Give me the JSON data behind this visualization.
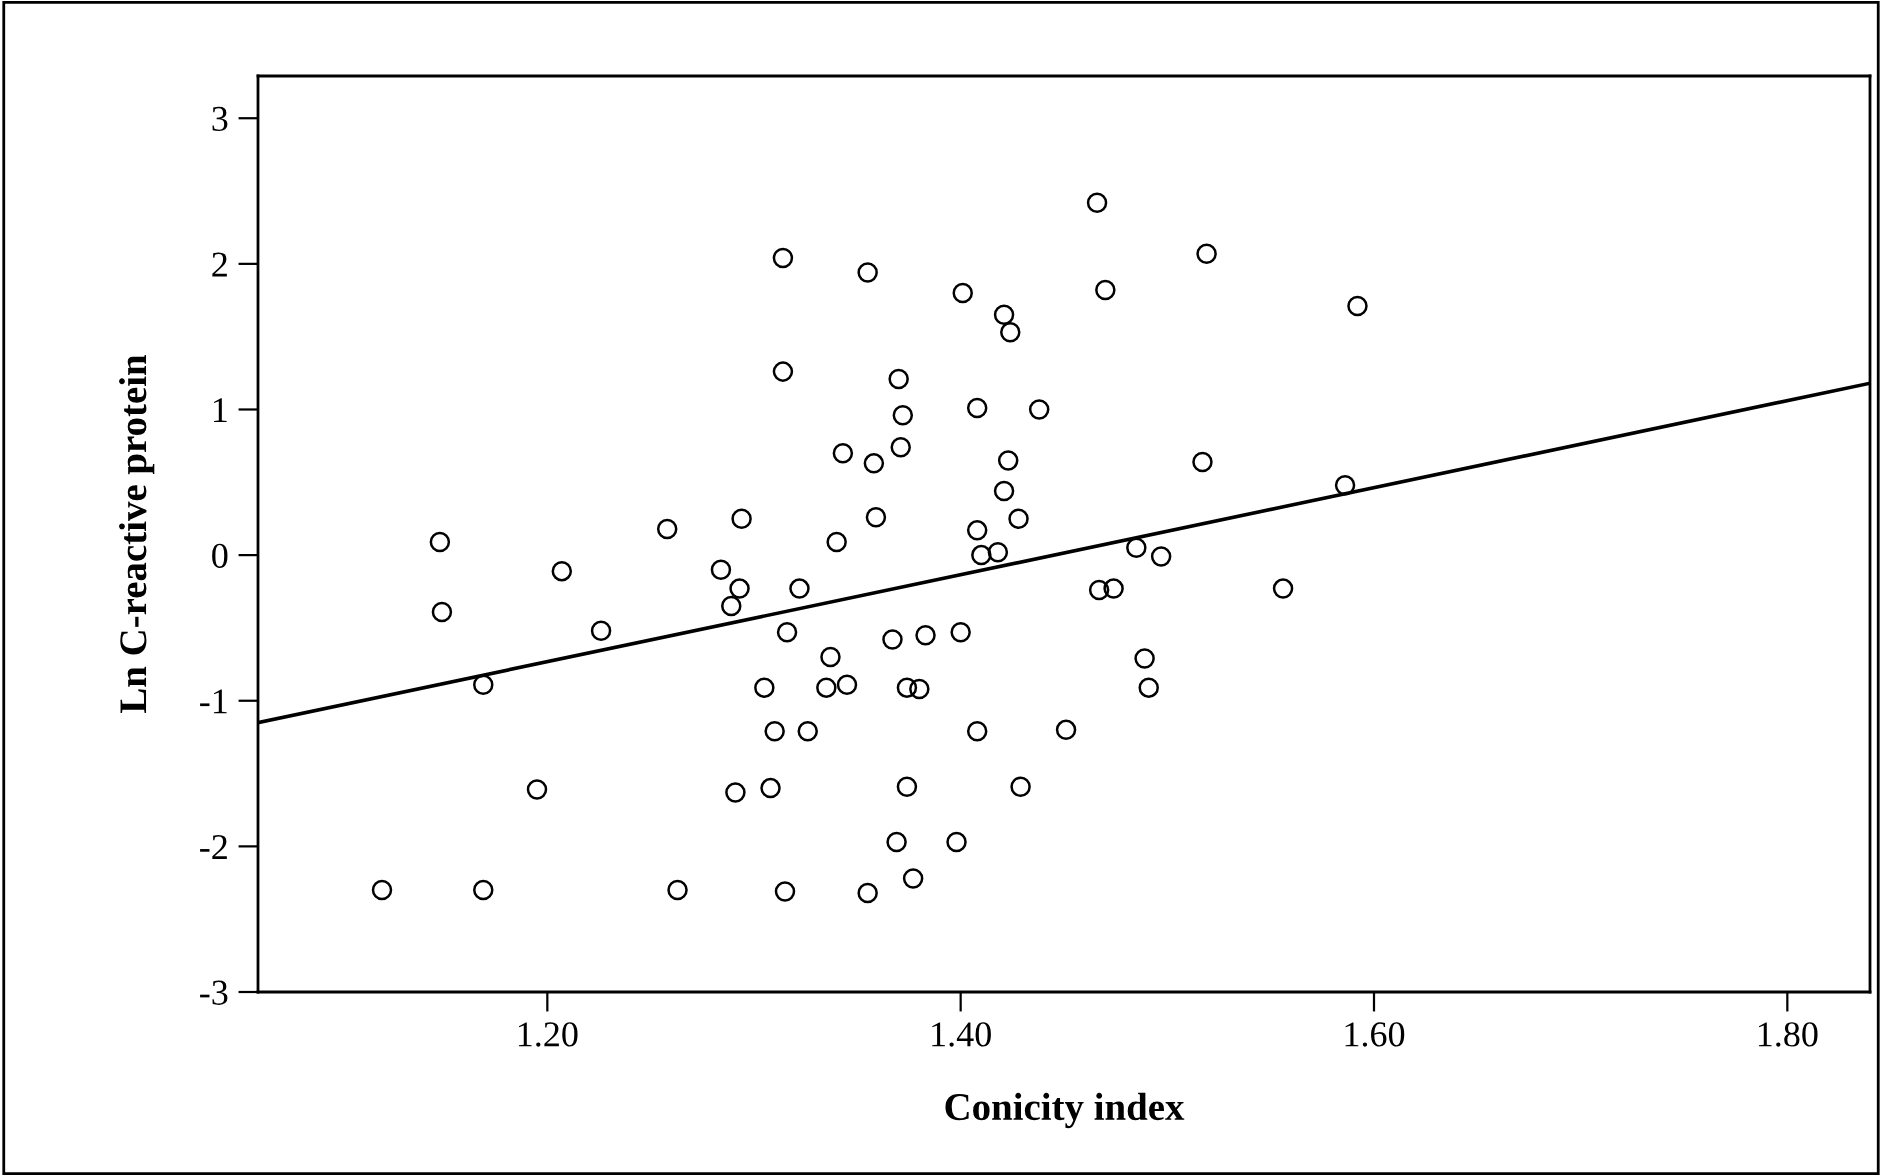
{
  "chart_data": {
    "type": "scatter",
    "xlabel": "Conicity index",
    "ylabel": "Ln C-reactive protein",
    "xlim": [
      1.06,
      1.84
    ],
    "xticks": [
      {
        "value": 1.2,
        "label": "1.20"
      },
      {
        "value": 1.4,
        "label": "1.40"
      },
      {
        "value": 1.6,
        "label": "1.60"
      },
      {
        "value": 1.8,
        "label": "1.80"
      }
    ],
    "ylim": [
      -3,
      3.29
    ],
    "yticks": [
      -3,
      -2,
      -1,
      0,
      1,
      2,
      3
    ],
    "grid": false,
    "marker": "circle",
    "series": [
      {
        "color": "#000000",
        "x": [
          1.314,
          1.314,
          1.148,
          1.149,
          1.207,
          1.226,
          1.258,
          1.294,
          1.284,
          1.293,
          1.289,
          1.316,
          1.169,
          1.305,
          1.31,
          1.195,
          1.291,
          1.308,
          1.12,
          1.169,
          1.263,
          1.315,
          1.355,
          1.401,
          1.421,
          1.424,
          1.466,
          1.47,
          1.37,
          1.372,
          1.408,
          1.438,
          1.343,
          1.371,
          1.358,
          1.423,
          1.421,
          1.428,
          1.359,
          1.34,
          1.408,
          1.41,
          1.418,
          1.322,
          1.367,
          1.383,
          1.4,
          1.337,
          1.335,
          1.345,
          1.374,
          1.38,
          1.326,
          1.408,
          1.451,
          1.374,
          1.429,
          1.369,
          1.398,
          1.377,
          1.355,
          1.519,
          1.517,
          1.586,
          1.485,
          1.497,
          1.467,
          1.474,
          1.556,
          1.489,
          1.491,
          1.592
        ],
        "values": [
          2.04,
          1.26,
          0.09,
          -0.39,
          -0.11,
          -0.52,
          0.18,
          0.25,
          -0.1,
          -0.23,
          -0.35,
          -0.53,
          -0.89,
          -0.91,
          -1.21,
          -1.61,
          -1.63,
          -1.6,
          -2.3,
          -2.3,
          -2.3,
          -2.31,
          1.94,
          1.8,
          1.65,
          1.53,
          2.42,
          1.82,
          1.21,
          0.96,
          1.01,
          1.0,
          0.7,
          0.74,
          0.63,
          0.65,
          0.44,
          0.25,
          0.26,
          0.09,
          0.17,
          0.0,
          0.02,
          -0.23,
          -0.58,
          -0.55,
          -0.53,
          -0.7,
          -0.91,
          -0.89,
          -0.91,
          -0.92,
          -1.21,
          -1.21,
          -1.2,
          -1.59,
          -1.59,
          -1.97,
          -1.97,
          -2.22,
          -2.32,
          2.07,
          0.64,
          0.48,
          0.05,
          -0.01,
          -0.24,
          -0.23,
          -0.23,
          -0.71,
          -0.91,
          1.71
        ]
      },
      {
        "type": "line",
        "color": "#000000",
        "marker": "none",
        "line_style": "solid",
        "x": [
          1.06,
          1.84
        ],
        "values": [
          -1.15,
          1.18
        ]
      }
    ]
  }
}
